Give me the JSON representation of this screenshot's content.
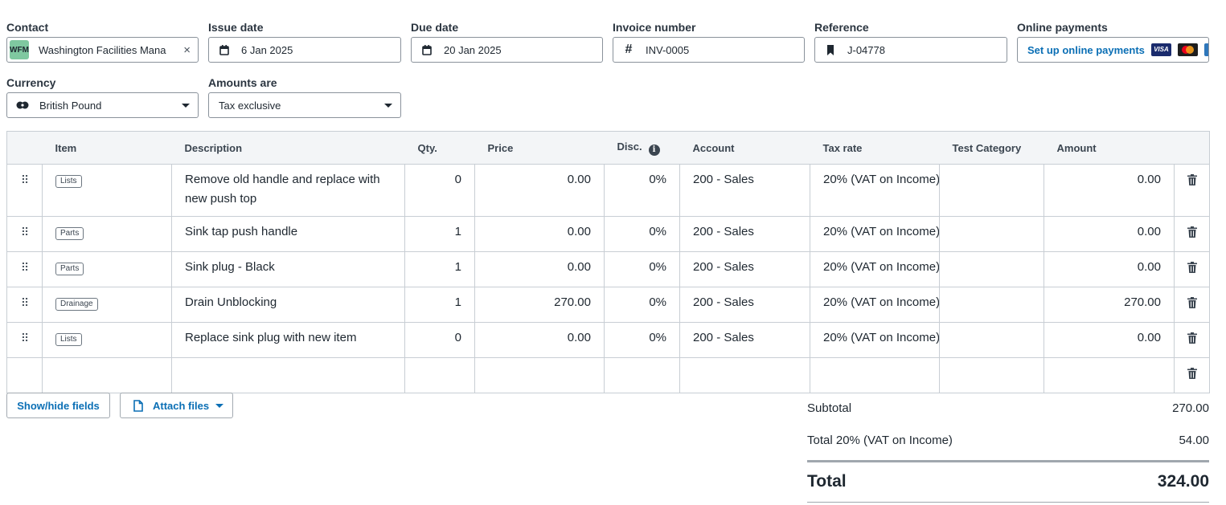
{
  "header": {
    "contact": {
      "label": "Contact",
      "avatar": "WFM",
      "value": "Washington Facilities Mana",
      "clear": "×"
    },
    "issue_date": {
      "label": "Issue date",
      "value": "6 Jan 2025",
      "icon": "calendar-icon"
    },
    "due_date": {
      "label": "Due date",
      "value": "20 Jan 2025",
      "icon": "calendar-icon"
    },
    "invoice_number": {
      "label": "Invoice number",
      "value": "INV-0005",
      "icon": "#"
    },
    "reference": {
      "label": "Reference",
      "value": "J-04778",
      "icon": "bookmark-icon"
    },
    "online_payments": {
      "label": "Online payments",
      "link": "Set up online payments"
    },
    "currency": {
      "label": "Currency",
      "value": "British Pound"
    },
    "amounts_are": {
      "label": "Amounts are",
      "value": "Tax exclusive"
    }
  },
  "table": {
    "columns": [
      "",
      "Item",
      "Description",
      "Qty.",
      "Price",
      "Disc.",
      "Account",
      "Tax rate",
      "Test Category",
      "Amount",
      ""
    ],
    "rows": [
      {
        "item": "Lists",
        "description": "Remove old handle and replace with new push top",
        "qty": "0",
        "price": "0.00",
        "disc": "0%",
        "account": "200 - Sales",
        "tax": "20% (VAT on Income)",
        "category": "",
        "amount": "0.00"
      },
      {
        "item": "Parts",
        "description": "Sink tap push handle",
        "qty": "1",
        "price": "0.00",
        "disc": "0%",
        "account": "200 - Sales",
        "tax": "20% (VAT on Income)",
        "category": "",
        "amount": "0.00"
      },
      {
        "item": "Parts",
        "description": "Sink plug - Black",
        "qty": "1",
        "price": "0.00",
        "disc": "0%",
        "account": "200 - Sales",
        "tax": "20% (VAT on Income)",
        "category": "",
        "amount": "0.00"
      },
      {
        "item": "Drainage",
        "description": "Drain Unblocking",
        "qty": "1",
        "price": "270.00",
        "disc": "0%",
        "account": "200 - Sales",
        "tax": "20% (VAT on Income)",
        "category": "",
        "amount": "270.00"
      },
      {
        "item": "Lists",
        "description": "Replace sink plug with new item",
        "qty": "0",
        "price": "0.00",
        "disc": "0%",
        "account": "200 - Sales",
        "tax": "20% (VAT on Income)",
        "category": "",
        "amount": "0.00"
      }
    ]
  },
  "actions": {
    "show_hide": "Show/hide fields",
    "attach": "Attach files"
  },
  "totals": {
    "subtotal_label": "Subtotal",
    "subtotal": "270.00",
    "tax_label": "Total 20% (VAT on Income)",
    "tax": "54.00",
    "total_label": "Total",
    "total": "324.00"
  },
  "colors": {
    "accent": "#0b6fb5",
    "avatar": "#7fc8a0"
  }
}
